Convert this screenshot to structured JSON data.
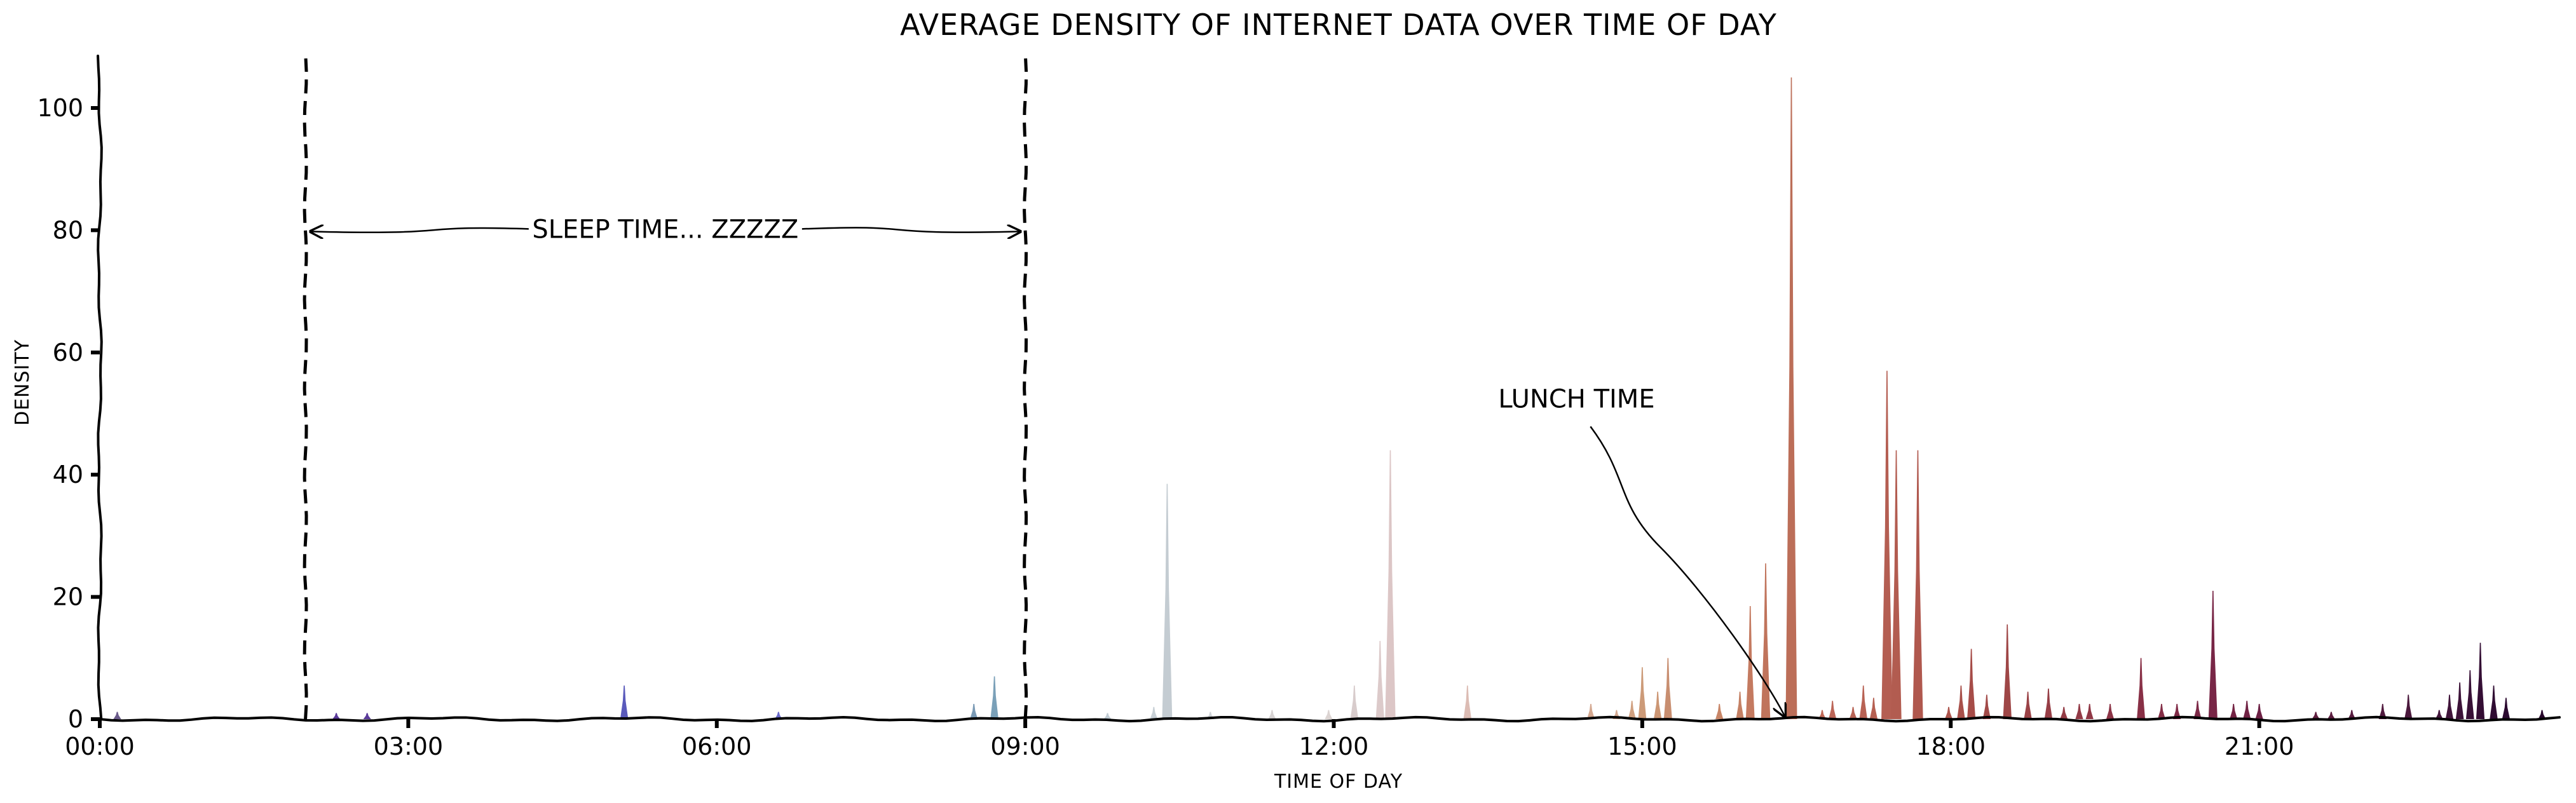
{
  "chart_data": {
    "type": "area",
    "title": "AVERAGE DENSITY OF INTERNET DATA OVER TIME OF DAY",
    "xlabel": "TIME OF DAY",
    "ylabel": "DENSITY",
    "xlim": [
      0,
      24
    ],
    "ylim": [
      0,
      110
    ],
    "grid": false,
    "legend": "none",
    "x_ticks": [
      {
        "value": 0,
        "label": "00:00"
      },
      {
        "value": 3,
        "label": "03:00"
      },
      {
        "value": 6,
        "label": "06:00"
      },
      {
        "value": 9,
        "label": "09:00"
      },
      {
        "value": 12,
        "label": "12:00"
      },
      {
        "value": 15,
        "label": "15:00"
      },
      {
        "value": 18,
        "label": "18:00"
      },
      {
        "value": 21,
        "label": "21:00"
      }
    ],
    "y_ticks": [
      {
        "value": 0,
        "label": "0"
      },
      {
        "value": 20,
        "label": "20"
      },
      {
        "value": 40,
        "label": "40"
      },
      {
        "value": 60,
        "label": "60"
      },
      {
        "value": 80,
        "label": "80"
      },
      {
        "value": 100,
        "label": "100"
      }
    ],
    "vlines": [
      2,
      9
    ],
    "annotations": [
      {
        "text": "SLEEP TIME... ZZZZZ",
        "type": "double-arrow",
        "x_from": 2,
        "x_to": 9,
        "y": 80
      },
      {
        "text": "LUNCH TIME",
        "type": "arrow",
        "text_x": 13.6,
        "text_y": 51,
        "target_x": 16.4,
        "target_y": 0
      }
    ],
    "peaks": [
      {
        "x": 0.17,
        "y": 1.2,
        "color": "#6a5a8a"
      },
      {
        "x": 2.3,
        "y": 1.0,
        "color": "#5a3a9a"
      },
      {
        "x": 2.6,
        "y": 1.0,
        "color": "#5a3a9a"
      },
      {
        "x": 5.1,
        "y": 5.5,
        "color": "#5a5abb"
      },
      {
        "x": 6.6,
        "y": 1.2,
        "color": "#6a6acb"
      },
      {
        "x": 8.5,
        "y": 2.5,
        "color": "#7a9ab5"
      },
      {
        "x": 8.7,
        "y": 7.0,
        "color": "#7aa0b8"
      },
      {
        "x": 9.8,
        "y": 1.0,
        "color": "#c0cbd3"
      },
      {
        "x": 10.25,
        "y": 2.0,
        "color": "#c8d0d6"
      },
      {
        "x": 10.38,
        "y": 38.5,
        "color": "#c4ccd2"
      },
      {
        "x": 10.8,
        "y": 1.2,
        "color": "#d0d4d8"
      },
      {
        "x": 11.4,
        "y": 1.5,
        "color": "#d8d4d4"
      },
      {
        "x": 11.95,
        "y": 1.5,
        "color": "#dcd4d2"
      },
      {
        "x": 12.2,
        "y": 5.5,
        "color": "#d8cccc"
      },
      {
        "x": 12.45,
        "y": 12.8,
        "color": "#dccaca"
      },
      {
        "x": 12.55,
        "y": 44.0,
        "color": "#dcc6c6"
      },
      {
        "x": 13.3,
        "y": 5.5,
        "color": "#dcbcb4"
      },
      {
        "x": 14.5,
        "y": 2.5,
        "color": "#d4a890"
      },
      {
        "x": 14.75,
        "y": 1.5,
        "color": "#d4a890"
      },
      {
        "x": 14.9,
        "y": 3.0,
        "color": "#d0a080"
      },
      {
        "x": 15.0,
        "y": 8.5,
        "color": "#cc9a78"
      },
      {
        "x": 15.15,
        "y": 4.5,
        "color": "#cc9674"
      },
      {
        "x": 15.25,
        "y": 10.0,
        "color": "#c88e70"
      },
      {
        "x": 15.75,
        "y": 2.5,
        "color": "#c88668"
      },
      {
        "x": 15.95,
        "y": 4.5,
        "color": "#c48064"
      },
      {
        "x": 16.05,
        "y": 18.5,
        "color": "#c47a60"
      },
      {
        "x": 16.2,
        "y": 25.5,
        "color": "#c0745c"
      },
      {
        "x": 16.45,
        "y": 105.0,
        "color": "#bc6e58"
      },
      {
        "x": 16.75,
        "y": 1.5,
        "color": "#c06a58"
      },
      {
        "x": 16.85,
        "y": 3.0,
        "color": "#bc6658"
      },
      {
        "x": 17.05,
        "y": 2.0,
        "color": "#b86456"
      },
      {
        "x": 17.15,
        "y": 5.5,
        "color": "#b86254"
      },
      {
        "x": 17.25,
        "y": 3.5,
        "color": "#b66052"
      },
      {
        "x": 17.38,
        "y": 57.0,
        "color": "#b45e52"
      },
      {
        "x": 17.47,
        "y": 44.0,
        "color": "#b25c50"
      },
      {
        "x": 17.68,
        "y": 44.0,
        "color": "#b0584e"
      },
      {
        "x": 17.98,
        "y": 2.0,
        "color": "#ac544c"
      },
      {
        "x": 18.1,
        "y": 5.5,
        "color": "#a8504a"
      },
      {
        "x": 18.2,
        "y": 11.5,
        "color": "#a64c48"
      },
      {
        "x": 18.35,
        "y": 4.0,
        "color": "#a24a48"
      },
      {
        "x": 18.55,
        "y": 15.5,
        "color": "#9e4646"
      },
      {
        "x": 18.75,
        "y": 4.5,
        "color": "#9a4246"
      },
      {
        "x": 18.95,
        "y": 5.0,
        "color": "#963e46"
      },
      {
        "x": 19.1,
        "y": 2.0,
        "color": "#943c46"
      },
      {
        "x": 19.25,
        "y": 2.5,
        "color": "#923a46"
      },
      {
        "x": 19.35,
        "y": 2.5,
        "color": "#903846"
      },
      {
        "x": 19.55,
        "y": 2.5,
        "color": "#8c3446"
      },
      {
        "x": 19.85,
        "y": 10.0,
        "color": "#883046"
      },
      {
        "x": 20.05,
        "y": 2.5,
        "color": "#842e46"
      },
      {
        "x": 20.2,
        "y": 2.5,
        "color": "#802a46"
      },
      {
        "x": 20.4,
        "y": 3.0,
        "color": "#7c2846"
      },
      {
        "x": 20.55,
        "y": 21.0,
        "color": "#782646"
      },
      {
        "x": 20.75,
        "y": 2.5,
        "color": "#742444"
      },
      {
        "x": 20.88,
        "y": 3.0,
        "color": "#702244"
      },
      {
        "x": 21.0,
        "y": 2.5,
        "color": "#6c2044"
      },
      {
        "x": 21.55,
        "y": 1.2,
        "color": "#602040"
      },
      {
        "x": 21.7,
        "y": 1.2,
        "color": "#5c1e40"
      },
      {
        "x": 21.9,
        "y": 1.5,
        "color": "#581c40"
      },
      {
        "x": 22.2,
        "y": 2.5,
        "color": "#501a3e"
      },
      {
        "x": 22.45,
        "y": 4.0,
        "color": "#4a183c"
      },
      {
        "x": 22.75,
        "y": 1.5,
        "color": "#44163c"
      },
      {
        "x": 22.85,
        "y": 4.0,
        "color": "#40143a"
      },
      {
        "x": 22.95,
        "y": 6.0,
        "color": "#3c1238"
      },
      {
        "x": 23.05,
        "y": 8.0,
        "color": "#381036"
      },
      {
        "x": 23.15,
        "y": 12.5,
        "color": "#340e34"
      },
      {
        "x": 23.28,
        "y": 5.5,
        "color": "#300c32"
      },
      {
        "x": 23.4,
        "y": 3.5,
        "color": "#2c0a30"
      },
      {
        "x": 23.75,
        "y": 1.5,
        "color": "#28082c"
      }
    ]
  }
}
